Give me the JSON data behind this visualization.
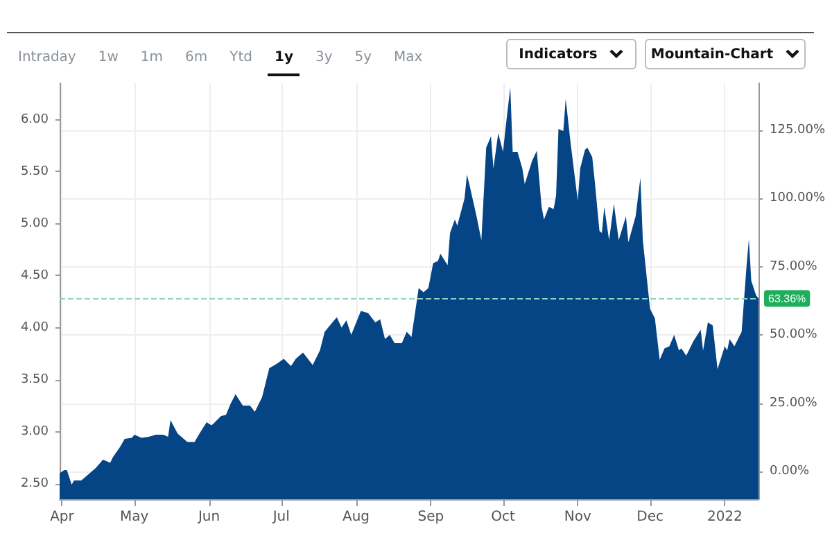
{
  "chart_data": {
    "type": "area",
    "color": "#054586",
    "annotations": [
      "Intraday",
      "1w",
      "1m",
      "6m",
      "Ytd",
      "1y",
      "3y",
      "5y",
      "Max",
      "Indicators",
      "Mountain-Chart"
    ],
    "x": [
      "2021-03-31",
      "2021-04-02",
      "2021-04-03",
      "2021-04-05",
      "2021-04-06",
      "2021-04-09",
      "2021-04-13",
      "2021-04-15",
      "2021-04-18",
      "2021-04-21",
      "2021-04-22",
      "2021-04-25",
      "2021-04-27",
      "2021-04-30",
      "2021-05-01",
      "2021-05-04",
      "2021-05-07",
      "2021-05-10",
      "2021-05-13",
      "2021-05-15",
      "2021-05-16",
      "2021-05-19",
      "2021-05-23",
      "2021-05-26",
      "2021-05-28",
      "2021-05-31",
      "2021-06-02",
      "2021-06-03",
      "2021-06-06",
      "2021-06-08",
      "2021-06-10",
      "2021-06-12",
      "2021-06-15",
      "2021-06-18",
      "2021-06-20",
      "2021-06-23",
      "2021-06-26",
      "2021-06-29",
      "2021-07-02",
      "2021-07-05",
      "2021-07-07",
      "2021-07-10",
      "2021-07-14",
      "2021-07-17",
      "2021-07-19",
      "2021-07-24",
      "2021-07-26",
      "2021-07-28",
      "2021-07-30",
      "2021-08-03",
      "2021-08-06",
      "2021-08-09",
      "2021-08-11",
      "2021-08-13",
      "2021-08-15",
      "2021-08-17",
      "2021-08-20",
      "2021-08-22",
      "2021-08-24",
      "2021-08-27",
      "2021-08-29",
      "2021-08-31",
      "2021-09-02",
      "2021-09-04",
      "2021-09-05",
      "2021-09-08",
      "2021-09-09",
      "2021-09-11",
      "2021-09-12",
      "2021-09-15",
      "2021-09-16",
      "2021-09-17",
      "2021-09-20",
      "2021-09-22",
      "2021-09-24",
      "2021-09-26",
      "2021-09-27",
      "2021-09-29",
      "2021-10-01",
      "2021-10-02",
      "2021-10-04",
      "2021-10-05",
      "2021-10-07",
      "2021-10-09",
      "2021-10-10",
      "2021-10-13",
      "2021-10-15",
      "2021-10-17",
      "2021-10-18",
      "2021-10-20",
      "2021-10-22",
      "2021-10-23",
      "2021-10-24",
      "2021-10-26",
      "2021-10-27",
      "2021-10-29",
      "2021-11-01",
      "2021-11-02",
      "2021-11-04",
      "2021-11-05",
      "2021-11-07",
      "2021-11-08",
      "2021-11-10",
      "2021-11-11",
      "2021-11-12",
      "2021-11-14",
      "2021-11-16",
      "2021-11-18",
      "2021-11-21",
      "2021-11-22",
      "2021-11-25",
      "2021-11-27",
      "2021-11-28",
      "2021-12-01",
      "2021-12-03",
      "2021-12-05",
      "2021-12-07",
      "2021-12-09",
      "2021-12-11",
      "2021-12-13",
      "2021-12-14",
      "2021-12-16",
      "2021-12-19",
      "2021-12-22",
      "2021-12-23",
      "2021-12-25",
      "2021-12-27",
      "2021-12-29",
      "2022-01-01",
      "2022-01-02",
      "2022-01-03",
      "2022-01-05",
      "2022-01-08",
      "2022-01-10",
      "2022-01-11",
      "2022-01-12",
      "2022-01-14",
      "2022-01-15"
    ],
    "values": [
      2.6,
      2.63,
      2.63,
      2.49,
      2.53,
      2.53,
      2.61,
      2.65,
      2.73,
      2.7,
      2.75,
      2.85,
      2.93,
      2.94,
      2.97,
      2.94,
      2.95,
      2.97,
      2.97,
      2.95,
      3.11,
      2.98,
      2.9,
      2.9,
      2.98,
      3.09,
      3.06,
      3.08,
      3.15,
      3.16,
      3.27,
      3.36,
      3.25,
      3.25,
      3.19,
      3.33,
      3.61,
      3.65,
      3.7,
      3.63,
      3.7,
      3.76,
      3.64,
      3.78,
      3.96,
      4.1,
      4.0,
      4.07,
      3.93,
      4.16,
      4.14,
      4.05,
      4.08,
      3.89,
      3.93,
      3.85,
      3.85,
      3.96,
      3.91,
      4.38,
      4.34,
      4.38,
      4.62,
      4.64,
      4.71,
      4.6,
      4.91,
      5.04,
      4.98,
      5.24,
      5.47,
      5.38,
      5.07,
      4.84,
      5.73,
      5.84,
      5.53,
      5.87,
      5.69,
      5.91,
      6.31,
      5.69,
      5.69,
      5.53,
      5.38,
      5.6,
      5.7,
      5.16,
      5.04,
      5.16,
      5.14,
      5.27,
      5.91,
      5.89,
      6.2,
      5.78,
      5.22,
      5.53,
      5.71,
      5.73,
      5.64,
      5.42,
      4.93,
      4.91,
      5.16,
      4.84,
      5.19,
      4.84,
      5.07,
      4.82,
      5.07,
      5.44,
      4.84,
      4.18,
      4.09,
      3.69,
      3.8,
      3.82,
      3.93,
      3.78,
      3.8,
      3.73,
      3.87,
      3.98,
      3.78,
      4.05,
      4.02,
      3.6,
      3.82,
      3.78,
      3.89,
      3.82,
      3.96,
      4.58,
      4.85,
      4.45,
      4.31,
      4.28
    ],
    "xlim": [
      "2021-03-31",
      "2022-01-15"
    ],
    "xticks": [
      {
        "value": "2021-04-01",
        "label": "Apr"
      },
      {
        "value": "2021-05-01",
        "label": "May"
      },
      {
        "value": "2021-06-01",
        "label": "Jun"
      },
      {
        "value": "2021-07-01",
        "label": "Jul"
      },
      {
        "value": "2021-08-01",
        "label": "Aug"
      },
      {
        "value": "2021-09-01",
        "label": "Sep"
      },
      {
        "value": "2021-10-01",
        "label": "Oct"
      },
      {
        "value": "2021-11-01",
        "label": "Nov"
      },
      {
        "value": "2021-12-01",
        "label": "Dec"
      },
      {
        "value": "2022-01-01",
        "label": "2022"
      }
    ],
    "ylim": [
      2.35,
      6.35
    ],
    "yticks": [
      {
        "value": 2.5,
        "label": "2.50"
      },
      {
        "value": 3,
        "label": "3.00"
      },
      {
        "value": 3.5,
        "label": "3.50"
      },
      {
        "value": 4,
        "label": "4.00"
      },
      {
        "value": 4.5,
        "label": "4.50"
      },
      {
        "value": 5,
        "label": "5.00"
      },
      {
        "value": 5.5,
        "label": "5.50"
      },
      {
        "value": 6,
        "label": "6.00"
      }
    ],
    "y2lim": [
      -10.2,
      142.3
    ],
    "y2ticks": [
      {
        "value": 0,
        "label": "0.00%"
      },
      {
        "value": 25,
        "label": "25.00%"
      },
      {
        "value": 50,
        "label": "50.00%"
      },
      {
        "value": 75,
        "label": "75.00%"
      },
      {
        "value": 100,
        "label": "100.00%"
      },
      {
        "value": 125,
        "label": "125.00%"
      }
    ],
    "ref_lines": [
      {
        "axis": "y2",
        "value": 63.36,
        "label": "63.36%",
        "color": "#8fd3b8",
        "line_style": "dashed"
      }
    ],
    "grid": true
  }
}
